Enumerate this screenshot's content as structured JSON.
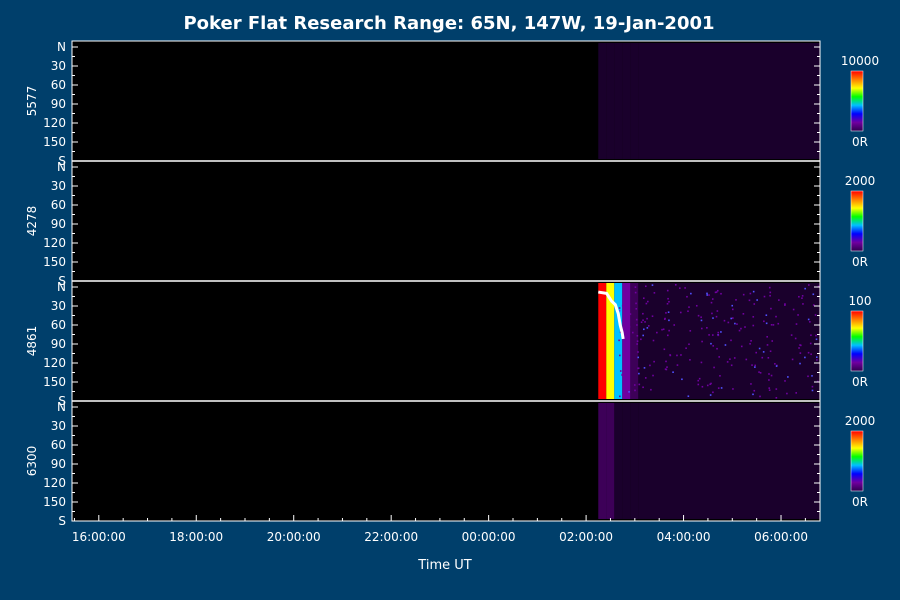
{
  "chart_data": {
    "type": "heatmap",
    "title": "Poker Flat Research Range: 65N, 147W, 19-Jan-2001",
    "xlabel": "Time UT",
    "x_ticks": [
      "16:00:00",
      "18:00:00",
      "20:00:00",
      "22:00:00",
      "00:00:00",
      "02:00:00",
      "04:00:00",
      "06:00:00"
    ],
    "x_range_hours": [
      15.45,
      30.8
    ],
    "y_ticks": [
      "N",
      "30",
      "60",
      "90",
      "120",
      "150",
      "S"
    ],
    "y_values": [
      0,
      30,
      60,
      90,
      120,
      150,
      180
    ],
    "data_start_hour": 26.25,
    "panels": [
      {
        "wavelength": "5577",
        "scale_max_label": "10000",
        "scale_min_label": "0R",
        "intensity": "faint uniform purple after 02:15",
        "levels": [
          0.02,
          0.02,
          0.02,
          0.02,
          0.02,
          0.02
        ]
      },
      {
        "wavelength": "4278",
        "scale_max_label": "2000",
        "scale_min_label": "0R",
        "intensity": "near zero (black)",
        "levels": [
          0,
          0,
          0,
          0,
          0,
          0
        ]
      },
      {
        "wavelength": "4861",
        "scale_max_label": "100",
        "scale_min_label": "0R",
        "intensity": "saturated red band 02:15-02:25 fading to speckled purple",
        "levels": [
          1.0,
          0.7,
          0.45,
          0.2,
          0.08,
          0.06
        ]
      },
      {
        "wavelength": "6300",
        "scale_max_label": "2000",
        "scale_min_label": "0R",
        "intensity": "faint purple, slightly brighter near 02:15",
        "levels": [
          0.12,
          0.09,
          0.07,
          0.06,
          0.05,
          0.05
        ]
      }
    ],
    "overlay_trace": {
      "panel": "4861",
      "color": "#ffffff",
      "points": [
        [
          26.25,
          8
        ],
        [
          26.42,
          10
        ],
        [
          26.52,
          22
        ],
        [
          26.6,
          28
        ],
        [
          26.66,
          42
        ],
        [
          26.7,
          60
        ],
        [
          26.74,
          72
        ],
        [
          26.76,
          82
        ]
      ]
    },
    "colorbar": [
      "#ff0000",
      "#ff8000",
      "#ffff00",
      "#00ff00",
      "#00c0ff",
      "#0000ff",
      "#7000a0",
      "#300050"
    ],
    "colors": {
      "background": "#003f6b",
      "plot": "#000000",
      "axis": "#ffffff",
      "low_intensity": "#3a0a4a"
    }
  }
}
